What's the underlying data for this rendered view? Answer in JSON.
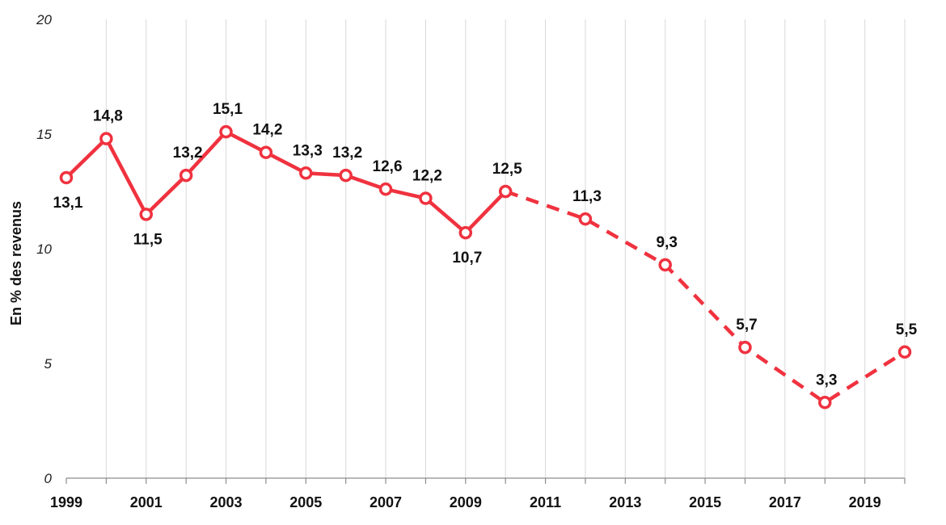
{
  "chart_data": {
    "type": "line",
    "ylabel": "En % des revenus",
    "xlabel": "",
    "xlim": [
      1999,
      2020
    ],
    "ylim": [
      0,
      20
    ],
    "yticks": [
      "0",
      "5",
      "10",
      "15",
      "20"
    ],
    "xticks": [
      "1999",
      "2001",
      "2003",
      "2005",
      "2007",
      "2009",
      "2011",
      "2013",
      "2015",
      "2017",
      "2019"
    ],
    "grid": "vertical",
    "color": "#f0323f",
    "series": [
      {
        "style": "solid",
        "points": [
          {
            "x": 1999,
            "y": 13.1,
            "label": "13,1",
            "label_pos": "below"
          },
          {
            "x": 2000,
            "y": 14.8,
            "label": "14,8",
            "label_pos": "above"
          },
          {
            "x": 2001,
            "y": 11.5,
            "label": "11,5",
            "label_pos": "below"
          },
          {
            "x": 2002,
            "y": 13.2,
            "label": "13,2",
            "label_pos": "above"
          },
          {
            "x": 2003,
            "y": 15.1,
            "label": "15,1",
            "label_pos": "above"
          },
          {
            "x": 2004,
            "y": 14.2,
            "label": "14,2",
            "label_pos": "above"
          },
          {
            "x": 2005,
            "y": 13.3,
            "label": "13,3",
            "label_pos": "above"
          },
          {
            "x": 2006,
            "y": 13.2,
            "label": "13,2",
            "label_pos": "above"
          },
          {
            "x": 2007,
            "y": 12.6,
            "label": "12,6",
            "label_pos": "above"
          },
          {
            "x": 2008,
            "y": 12.2,
            "label": "12,2",
            "label_pos": "above"
          },
          {
            "x": 2009,
            "y": 10.7,
            "label": "10,7",
            "label_pos": "below"
          },
          {
            "x": 2010,
            "y": 12.5,
            "label": "12,5",
            "label_pos": "above"
          }
        ]
      },
      {
        "style": "dashed",
        "points": [
          {
            "x": 2010,
            "y": 12.5
          },
          {
            "x": 2012,
            "y": 11.3,
            "label": "11,3",
            "label_pos": "above"
          },
          {
            "x": 2014,
            "y": 9.3,
            "label": "9,3",
            "label_pos": "above"
          },
          {
            "x": 2016,
            "y": 5.7,
            "label": "5,7",
            "label_pos": "above"
          },
          {
            "x": 2018,
            "y": 3.3,
            "label": "3,3",
            "label_pos": "above"
          },
          {
            "x": 2020,
            "y": 5.5,
            "label": "5,5",
            "label_pos": "above"
          }
        ]
      }
    ]
  }
}
